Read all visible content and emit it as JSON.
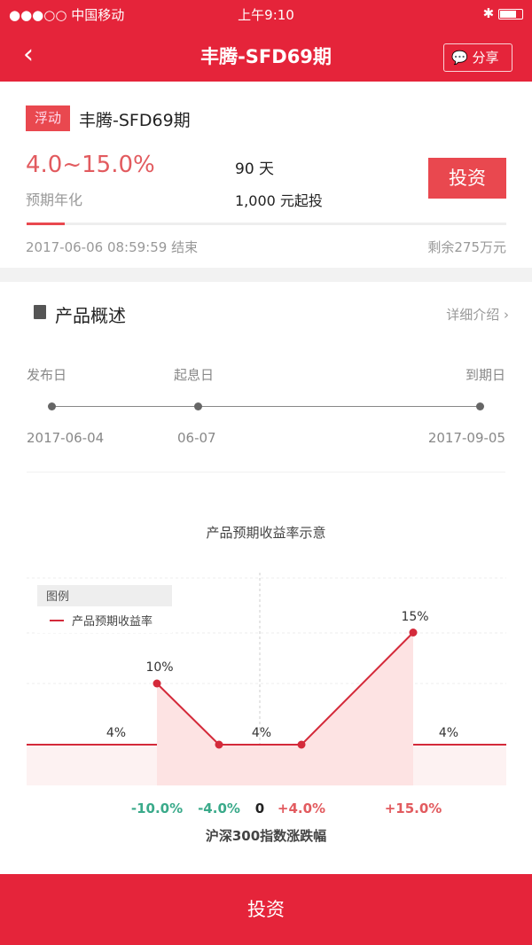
{
  "status": {
    "carrier": "●●●○○ 中国移动",
    "time": "上午9:10",
    "bluetooth": "✱"
  },
  "header": {
    "title": "丰腾-SFD69期",
    "share_label": "分享",
    "back_icon": "chevron-left"
  },
  "product": {
    "tag": "浮动",
    "name": "丰腾-SFD69期",
    "rate": "4.0~15.0%",
    "rate_label": "预期年化",
    "days": "90 天",
    "min_invest": "1,000 元起投",
    "invest_label": "投资",
    "progress_percent": 8,
    "end_time": "2017-06-06 08:59:59 结束",
    "remaining": "剩余275万元"
  },
  "overview": {
    "title": "产品概述",
    "more": "详细介绍 ›",
    "timeline": [
      {
        "label": "发布日",
        "date": "2017-06-04"
      },
      {
        "label": "起息日",
        "date": "06-07"
      },
      {
        "label": "到期日",
        "date": "2017-09-05"
      }
    ]
  },
  "chart_data": {
    "type": "line",
    "title": "产品预期收益率示意",
    "xlabel": "沪深300指数涨跌幅",
    "legend_title": "图例",
    "legend": "产品预期收益率",
    "legend_position": "top-left",
    "x_ticks": [
      "-10.0%",
      "-4.0%",
      "0",
      "+4.0%",
      "+15.0%"
    ],
    "x_tick_colors": [
      "#3aaa8a",
      "#3aaa8a",
      "#222222",
      "#e25b5f",
      "#e25b5f"
    ],
    "segments": [
      {
        "x": [
          "<-10.0%",
          "-10.0%"
        ],
        "y": [
          4,
          4
        ]
      },
      {
        "x": [
          "-10.0%",
          "-4.0%",
          "+4.0%",
          "+15.0%"
        ],
        "y": [
          10,
          4,
          4,
          15
        ]
      },
      {
        "x": [
          "+15.0%",
          ">+15.0%"
        ],
        "y": [
          4,
          4
        ]
      }
    ],
    "labels": [
      "4%",
      "10%",
      "4%",
      "15%",
      "4%"
    ],
    "ylim": [
      0,
      18
    ],
    "line_color": "#d42a3a"
  },
  "footer": {
    "invest_label": "投资"
  }
}
